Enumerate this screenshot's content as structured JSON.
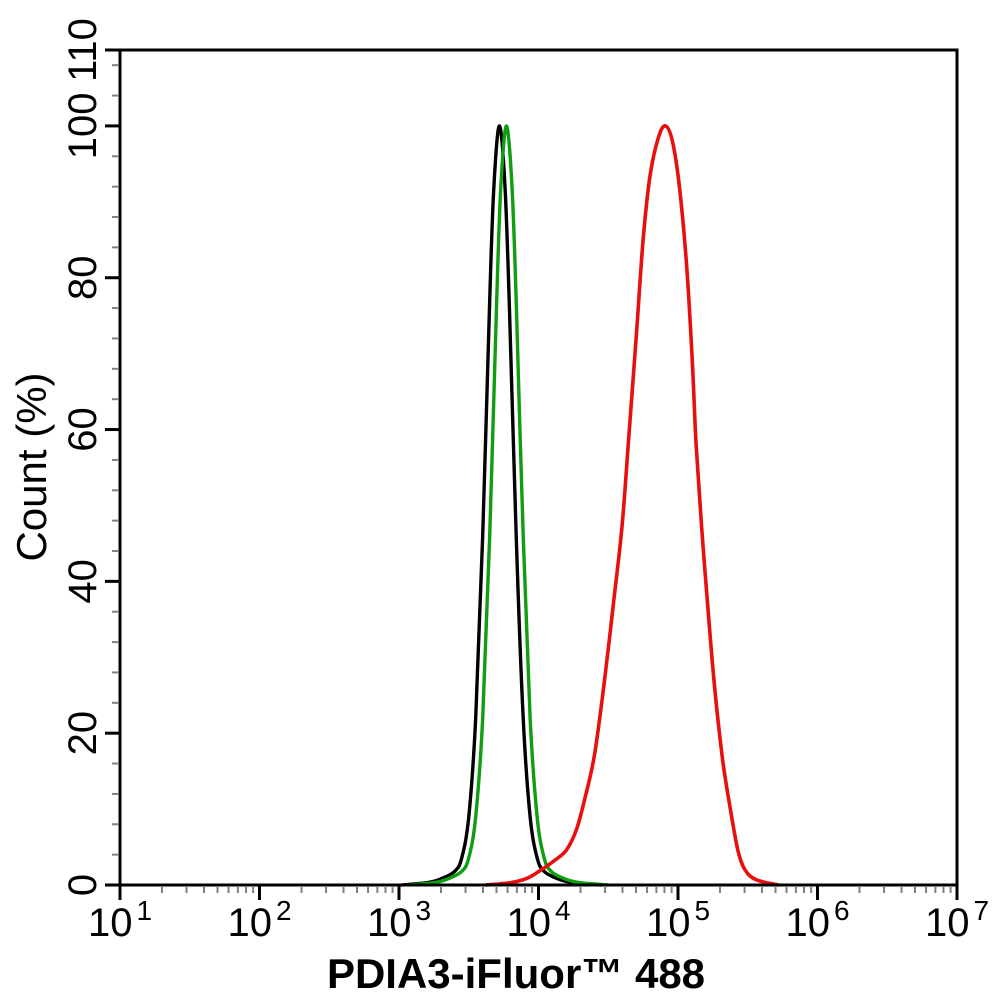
{
  "chart_data": {
    "type": "line",
    "subtype": "flow-cytometry-histogram-overlay",
    "title": "",
    "xlabel": "PDIA3-iFluor™ 488",
    "ylabel": "Count (%)",
    "x_scale": "log10",
    "x_exponent_range": [
      1,
      7
    ],
    "x_major_tick_exponents": [
      1,
      2,
      3,
      4,
      5,
      6,
      7
    ],
    "x_minor_tick_mantissas": [
      2,
      3,
      4,
      5,
      6,
      7,
      8,
      9
    ],
    "ylim": [
      0,
      110
    ],
    "y_major_ticks": [
      0,
      20,
      40,
      60,
      80,
      100,
      110
    ],
    "y_minor_tick_step": 4,
    "grid": false,
    "legend": "none",
    "colors": {
      "background": "#ffffff",
      "axis": "#000000",
      "minor_tick": "#808080"
    },
    "series": [
      {
        "name": "black-histogram",
        "color": "#000000",
        "stroke_width": 3.4,
        "peak": {
          "x_log10": 3.72,
          "x_value": 5200,
          "y_percent": 100
        },
        "points": [
          [
            3.02,
            0
          ],
          [
            3.2,
            0.3
          ],
          [
            3.3,
            0.8
          ],
          [
            3.4,
            1.8
          ],
          [
            3.45,
            3.6
          ],
          [
            3.5,
            9
          ],
          [
            3.55,
            22
          ],
          [
            3.6,
            46
          ],
          [
            3.65,
            77
          ],
          [
            3.68,
            92
          ],
          [
            3.72,
            100
          ],
          [
            3.76,
            92
          ],
          [
            3.79,
            77
          ],
          [
            3.84,
            46
          ],
          [
            3.89,
            22
          ],
          [
            3.94,
            9
          ],
          [
            3.99,
            3.6
          ],
          [
            4.04,
            1.8
          ],
          [
            4.14,
            0.8
          ],
          [
            4.25,
            0.3
          ],
          [
            4.45,
            0
          ]
        ]
      },
      {
        "name": "green-histogram",
        "color": "#0f9e0f",
        "stroke_width": 3.4,
        "peak": {
          "x_log10": 3.77,
          "x_value": 5900,
          "y_percent": 100
        },
        "points": [
          [
            3.07,
            0
          ],
          [
            3.25,
            0.3
          ],
          [
            3.35,
            0.8
          ],
          [
            3.45,
            1.8
          ],
          [
            3.5,
            3.6
          ],
          [
            3.55,
            9
          ],
          [
            3.6,
            22
          ],
          [
            3.65,
            46
          ],
          [
            3.7,
            77
          ],
          [
            3.73,
            92
          ],
          [
            3.77,
            100
          ],
          [
            3.81,
            92
          ],
          [
            3.84,
            77
          ],
          [
            3.89,
            46
          ],
          [
            3.94,
            22
          ],
          [
            3.99,
            9
          ],
          [
            4.04,
            3.6
          ],
          [
            4.09,
            1.8
          ],
          [
            4.19,
            0.8
          ],
          [
            4.3,
            0.3
          ],
          [
            4.5,
            0
          ]
        ]
      },
      {
        "name": "red-histogram",
        "color": "#e80f0f",
        "stroke_width": 3.6,
        "peak": {
          "x_log10": 4.91,
          "x_value": 81000,
          "y_percent": 100
        },
        "points": [
          [
            3.62,
            0
          ],
          [
            3.8,
            0.3
          ],
          [
            3.92,
            0.9
          ],
          [
            4.02,
            2.0
          ],
          [
            4.12,
            3.3
          ],
          [
            4.2,
            4.6
          ],
          [
            4.27,
            7.2
          ],
          [
            4.33,
            11.2
          ],
          [
            4.4,
            17
          ],
          [
            4.47,
            26.5
          ],
          [
            4.54,
            37.5
          ],
          [
            4.6,
            47.5
          ],
          [
            4.645,
            58.5
          ],
          [
            4.7,
            72
          ],
          [
            4.75,
            85
          ],
          [
            4.8,
            93.5
          ],
          [
            4.86,
            98.5
          ],
          [
            4.91,
            100
          ],
          [
            4.96,
            98
          ],
          [
            5.01,
            92
          ],
          [
            5.06,
            82
          ],
          [
            5.1,
            70
          ],
          [
            5.13,
            58
          ],
          [
            5.17,
            47
          ],
          [
            5.21,
            37.5
          ],
          [
            5.26,
            26.5
          ],
          [
            5.32,
            16.5
          ],
          [
            5.38,
            9.5
          ],
          [
            5.43,
            4.5
          ],
          [
            5.48,
            2.0
          ],
          [
            5.56,
            0.7
          ],
          [
            5.72,
            0
          ]
        ]
      }
    ]
  }
}
